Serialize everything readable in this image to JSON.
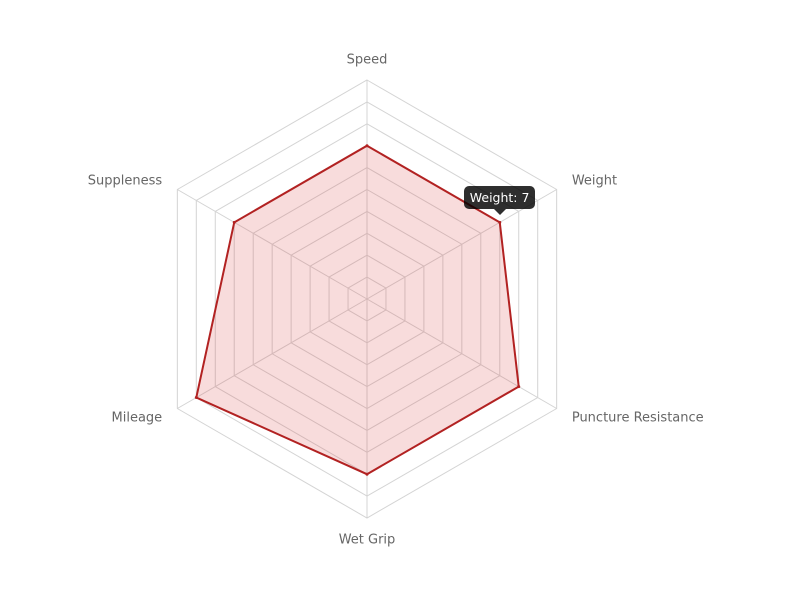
{
  "chart_data": {
    "type": "radar",
    "categories": [
      "Speed",
      "Weight",
      "Puncture Resistance",
      "Wet Grip",
      "Mileage",
      "Suppleness"
    ],
    "series": [
      {
        "values": [
          7,
          7,
          8,
          8,
          9,
          7
        ],
        "color": "#b22222",
        "fill": "rgba(220,80,80,0.2)"
      }
    ],
    "rlim": [
      0,
      10
    ],
    "grid": true,
    "tooltip": {
      "text": "Weight: 7"
    }
  }
}
